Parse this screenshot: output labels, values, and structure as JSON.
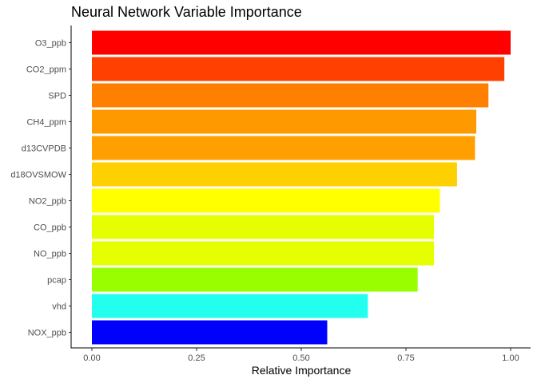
{
  "chart_data": {
    "type": "bar",
    "orientation": "horizontal",
    "title": "Neural Network Variable Importance",
    "xlabel": "Relative Importance",
    "ylabel": "",
    "xlim": [
      0,
      1
    ],
    "xticks": [
      0,
      0.25,
      0.5,
      0.75,
      1.0
    ],
    "xtick_labels": [
      "0.00",
      "0.25",
      "0.50",
      "0.75",
      "1.00"
    ],
    "grid": false,
    "legend": "none",
    "categories": [
      "O3_ppb",
      "CO2_ppm",
      "SPD",
      "CH4_ppm",
      "d13CVPDB",
      "d18OVSMOW",
      "NO2_ppb",
      "CO_ppb",
      "NO_ppb",
      "pcap",
      "vhd",
      "NOX_ppb"
    ],
    "values": [
      1.0,
      0.985,
      0.947,
      0.918,
      0.915,
      0.872,
      0.831,
      0.817,
      0.817,
      0.778,
      0.659,
      0.562
    ],
    "colors": [
      "#ff0000",
      "#ff4000",
      "#ff8000",
      "#ff9900",
      "#ffa000",
      "#ffd000",
      "#ffff00",
      "#e6ff00",
      "#e6ff00",
      "#99ff00",
      "#22ffee",
      "#0000ff"
    ]
  }
}
